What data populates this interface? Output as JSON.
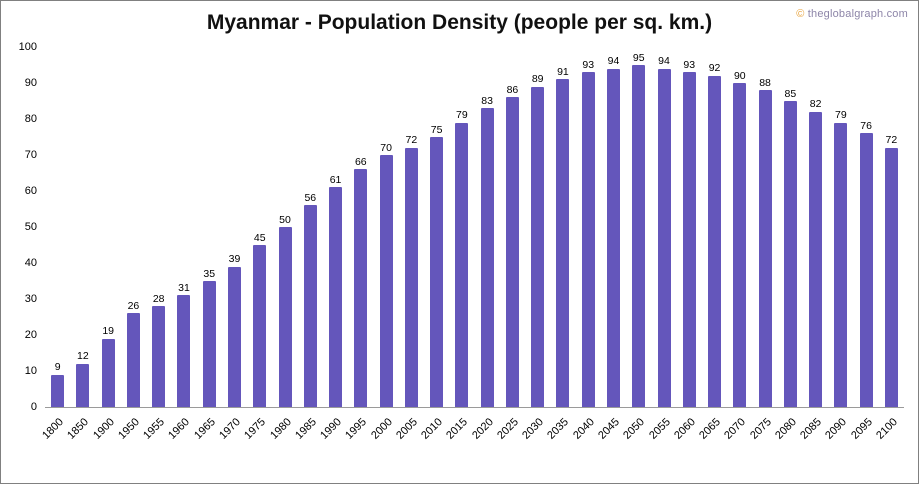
{
  "watermark": {
    "symbol": "©",
    "text": "theglobalgraph.com"
  },
  "chart_data": {
    "type": "bar",
    "title": "Myanmar - Population Density (people per sq. km.)",
    "xlabel": "",
    "ylabel": "",
    "categories": [
      "1800",
      "1850",
      "1900",
      "1950",
      "1955",
      "1960",
      "1965",
      "1970",
      "1975",
      "1980",
      "1985",
      "1990",
      "1995",
      "2000",
      "2005",
      "2010",
      "2015",
      "2020",
      "2025",
      "2030",
      "2035",
      "2040",
      "2045",
      "2050",
      "2055",
      "2060",
      "2065",
      "2070",
      "2075",
      "2080",
      "2085",
      "2090",
      "2095",
      "2100"
    ],
    "values": [
      9,
      12,
      19,
      26,
      28,
      31,
      35,
      39,
      45,
      50,
      56,
      61,
      66,
      70,
      72,
      75,
      79,
      83,
      86,
      89,
      91,
      93,
      94,
      95,
      94,
      93,
      92,
      90,
      88,
      85,
      82,
      79,
      76,
      72
    ],
    "ylim": [
      0,
      100
    ],
    "yticks": [
      0,
      10,
      20,
      30,
      40,
      50,
      60,
      70,
      80,
      90,
      100
    ],
    "bar_color": "#6456bb",
    "grid": false,
    "legend": false
  }
}
